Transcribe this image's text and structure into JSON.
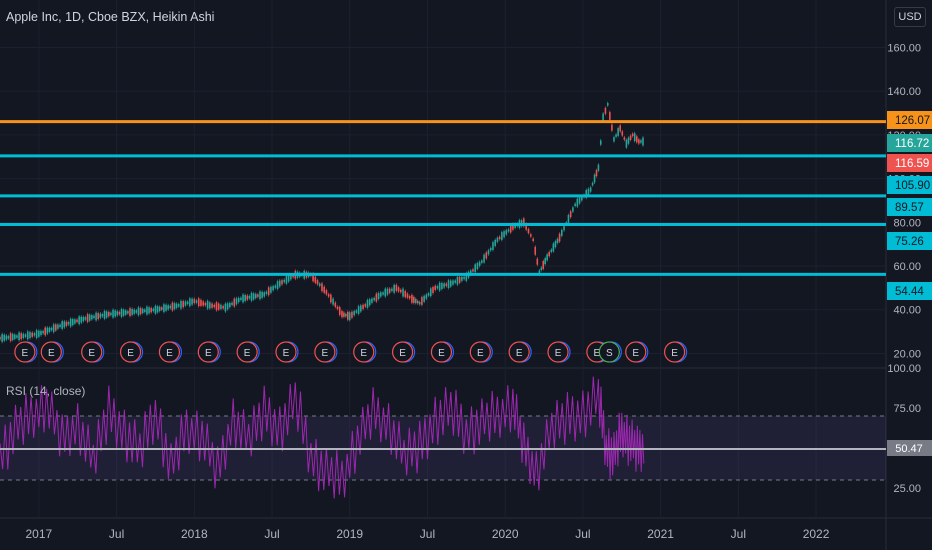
{
  "header": {
    "title": "Apple Inc, 1D, Cboe BZX, Heikin Ashi",
    "currency": "USD"
  },
  "price_axis": {
    "ticks": [
      "160.00",
      "140.00",
      "120.00",
      "100.00",
      "80.00",
      "60.00",
      "40.00",
      "20.00"
    ]
  },
  "rsi_axis": {
    "ticks": [
      "100.00",
      "75.00",
      "50.00",
      "25.00"
    ]
  },
  "time_axis": {
    "labels": [
      "2017",
      "Jul",
      "2018",
      "Jul",
      "2019",
      "Jul",
      "2020",
      "Jul",
      "2021",
      "Jul",
      "2022"
    ]
  },
  "price_labels": [
    {
      "value": 126.07,
      "text": "126.07",
      "color": "#f7931a",
      "text_color": "#131722"
    },
    {
      "value": 116.72,
      "text": "116.72",
      "color": "#26a69a",
      "text_color": "#ffffff"
    },
    {
      "value": 116.59,
      "text": "116.59",
      "color": "#ef5350",
      "text_color": "#ffffff"
    },
    {
      "value": 105.9,
      "text": "105.90",
      "color": "#00bcd4",
      "text_color": "#131722"
    },
    {
      "value": 89.57,
      "text": "89.57",
      "color": "#00bcd4",
      "text_color": "#131722"
    },
    {
      "value": 75.26,
      "text": "75.26",
      "color": "#00bcd4",
      "text_color": "#131722"
    },
    {
      "value": 54.44,
      "text": "54.44",
      "color": "#00bcd4",
      "text_color": "#131722"
    }
  ],
  "horizontal_lines": [
    {
      "price": 126.07,
      "color": "#f7931a"
    },
    {
      "price": 110.4,
      "color": "#00bcd4"
    },
    {
      "price": 92.1,
      "color": "#00bcd4"
    },
    {
      "price": 79.0,
      "color": "#00bcd4"
    },
    {
      "price": 56.2,
      "color": "#00bcd4"
    }
  ],
  "rsi": {
    "title": "RSI (14, close)",
    "value": "50.47",
    "upper": 70,
    "lower": 30,
    "middle": 50
  },
  "events": [
    {
      "type": "E",
      "date": 2016.91
    },
    {
      "type": "E",
      "date": 2017.08
    },
    {
      "type": "E",
      "date": 2017.34
    },
    {
      "type": "E",
      "date": 2017.59
    },
    {
      "type": "E",
      "date": 2017.84
    },
    {
      "type": "E",
      "date": 2018.09
    },
    {
      "type": "E",
      "date": 2018.34
    },
    {
      "type": "E",
      "date": 2018.59
    },
    {
      "type": "E",
      "date": 2018.84
    },
    {
      "type": "E",
      "date": 2019.09
    },
    {
      "type": "E",
      "date": 2019.34
    },
    {
      "type": "E",
      "date": 2019.59
    },
    {
      "type": "E",
      "date": 2019.84
    },
    {
      "type": "E",
      "date": 2020.09
    },
    {
      "type": "E",
      "date": 2020.34
    },
    {
      "type": "E",
      "date": 2020.59
    },
    {
      "type": "S",
      "date": 2020.67
    },
    {
      "type": "E",
      "date": 2020.84
    },
    {
      "type": "E",
      "date": 2021.09
    }
  ],
  "chart_data": {
    "type": "line",
    "title": "Apple Inc, 1D, Cboe BZX, Heikin Ashi",
    "xlabel": "",
    "ylabel": "USD",
    "x_range": [
      2016.75,
      2022.45
    ],
    "ylim": [
      17,
      168
    ],
    "price_series": {
      "name": "",
      "x": [
        2016.75,
        2016.9,
        2017.0,
        2017.15,
        2017.3,
        2017.45,
        2017.6,
        2017.75,
        2017.9,
        2018.0,
        2018.1,
        2018.2,
        2018.3,
        2018.45,
        2018.55,
        2018.65,
        2018.75,
        2018.85,
        2018.95,
        2019.0,
        2019.1,
        2019.2,
        2019.3,
        2019.4,
        2019.45,
        2019.55,
        2019.65,
        2019.75,
        2019.85,
        2019.95,
        2020.05,
        2020.12,
        2020.18,
        2020.22,
        2020.27,
        2020.35,
        2020.45,
        2020.55,
        2020.6,
        2020.63,
        2020.66,
        2020.7,
        2020.74,
        2020.78,
        2020.82,
        2020.86,
        2020.9
      ],
      "values": [
        27,
        28,
        29,
        33,
        36,
        38,
        39,
        40,
        42,
        44,
        42,
        41,
        45,
        47,
        52,
        56,
        56,
        48,
        38,
        37,
        42,
        47,
        50,
        45,
        43,
        50,
        52,
        55,
        62,
        72,
        78,
        80,
        72,
        57,
        64,
        73,
        88,
        95,
        105,
        128,
        134,
        118,
        123,
        116,
        120,
        117,
        117
      ]
    },
    "rsi_series": {
      "name": "RSI (14, close)",
      "x": [
        2016.75,
        2016.85,
        2016.95,
        2017.05,
        2017.15,
        2017.25,
        2017.35,
        2017.45,
        2017.55,
        2017.65,
        2017.75,
        2017.85,
        2017.95,
        2018.05,
        2018.15,
        2018.25,
        2018.35,
        2018.45,
        2018.55,
        2018.65,
        2018.75,
        2018.85,
        2018.95,
        2019.05,
        2019.15,
        2019.25,
        2019.35,
        2019.45,
        2019.55,
        2019.65,
        2019.75,
        2019.85,
        2019.95,
        2020.05,
        2020.12,
        2020.2,
        2020.3,
        2020.4,
        2020.5,
        2020.6,
        2020.65,
        2020.7,
        2020.75,
        2020.8,
        2020.85,
        2020.9
      ],
      "values": [
        45,
        62,
        70,
        78,
        55,
        65,
        42,
        72,
        60,
        48,
        72,
        38,
        62,
        58,
        35,
        68,
        55,
        72,
        62,
        80,
        45,
        35,
        30,
        55,
        72,
        65,
        45,
        50,
        68,
        74,
        60,
        66,
        70,
        78,
        50,
        35,
        62,
        68,
        72,
        82,
        50,
        45,
        60,
        55,
        48,
        52
      ]
    },
    "rsi_ylim": [
      10,
      100
    ],
    "grid": true
  }
}
